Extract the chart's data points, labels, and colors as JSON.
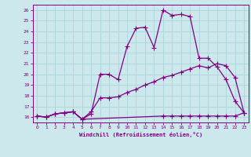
{
  "xlabel": "Windchill (Refroidissement éolien,°C)",
  "background_color": "#cce8ec",
  "line_color": "#800080",
  "grid_color": "#b0d8dc",
  "xlim": [
    -0.5,
    23.5
  ],
  "ylim": [
    15.5,
    26.5
  ],
  "xticks": [
    0,
    1,
    2,
    3,
    4,
    5,
    6,
    7,
    8,
    9,
    10,
    11,
    12,
    13,
    14,
    15,
    16,
    17,
    18,
    19,
    20,
    21,
    22,
    23
  ],
  "yticks": [
    16,
    17,
    18,
    19,
    20,
    21,
    22,
    23,
    24,
    25,
    26
  ],
  "line1_x": [
    0,
    1,
    2,
    3,
    4,
    5,
    6,
    7,
    8,
    9,
    10,
    11,
    12,
    13,
    14,
    15,
    16,
    17,
    18,
    19,
    20,
    21,
    22,
    23
  ],
  "line1_y": [
    16.1,
    16.0,
    16.3,
    16.4,
    16.5,
    15.8,
    16.3,
    20.0,
    20.0,
    19.5,
    22.6,
    24.3,
    24.4,
    22.5,
    26.0,
    25.5,
    25.6,
    25.4,
    21.5,
    21.5,
    20.7,
    19.5,
    17.5,
    16.4
  ],
  "line2_x": [
    0,
    1,
    2,
    3,
    4,
    5,
    6,
    7,
    8,
    9,
    10,
    11,
    12,
    13,
    14,
    15,
    16,
    17,
    18,
    19,
    20,
    21,
    22,
    23
  ],
  "line2_y": [
    16.1,
    16.0,
    16.3,
    16.4,
    16.5,
    15.8,
    16.5,
    17.8,
    17.8,
    17.9,
    18.3,
    18.6,
    19.0,
    19.3,
    19.7,
    19.9,
    20.2,
    20.5,
    20.8,
    20.6,
    21.0,
    20.8,
    19.7,
    16.4
  ],
  "line3_x": [
    0,
    1,
    2,
    3,
    4,
    5,
    14,
    15,
    16,
    17,
    18,
    19,
    20,
    21,
    22,
    23
  ],
  "line3_y": [
    16.1,
    16.0,
    16.3,
    16.4,
    16.5,
    15.8,
    16.1,
    16.1,
    16.1,
    16.1,
    16.1,
    16.1,
    16.1,
    16.1,
    16.1,
    16.4
  ],
  "markersize": 2.5,
  "linewidth": 0.9
}
